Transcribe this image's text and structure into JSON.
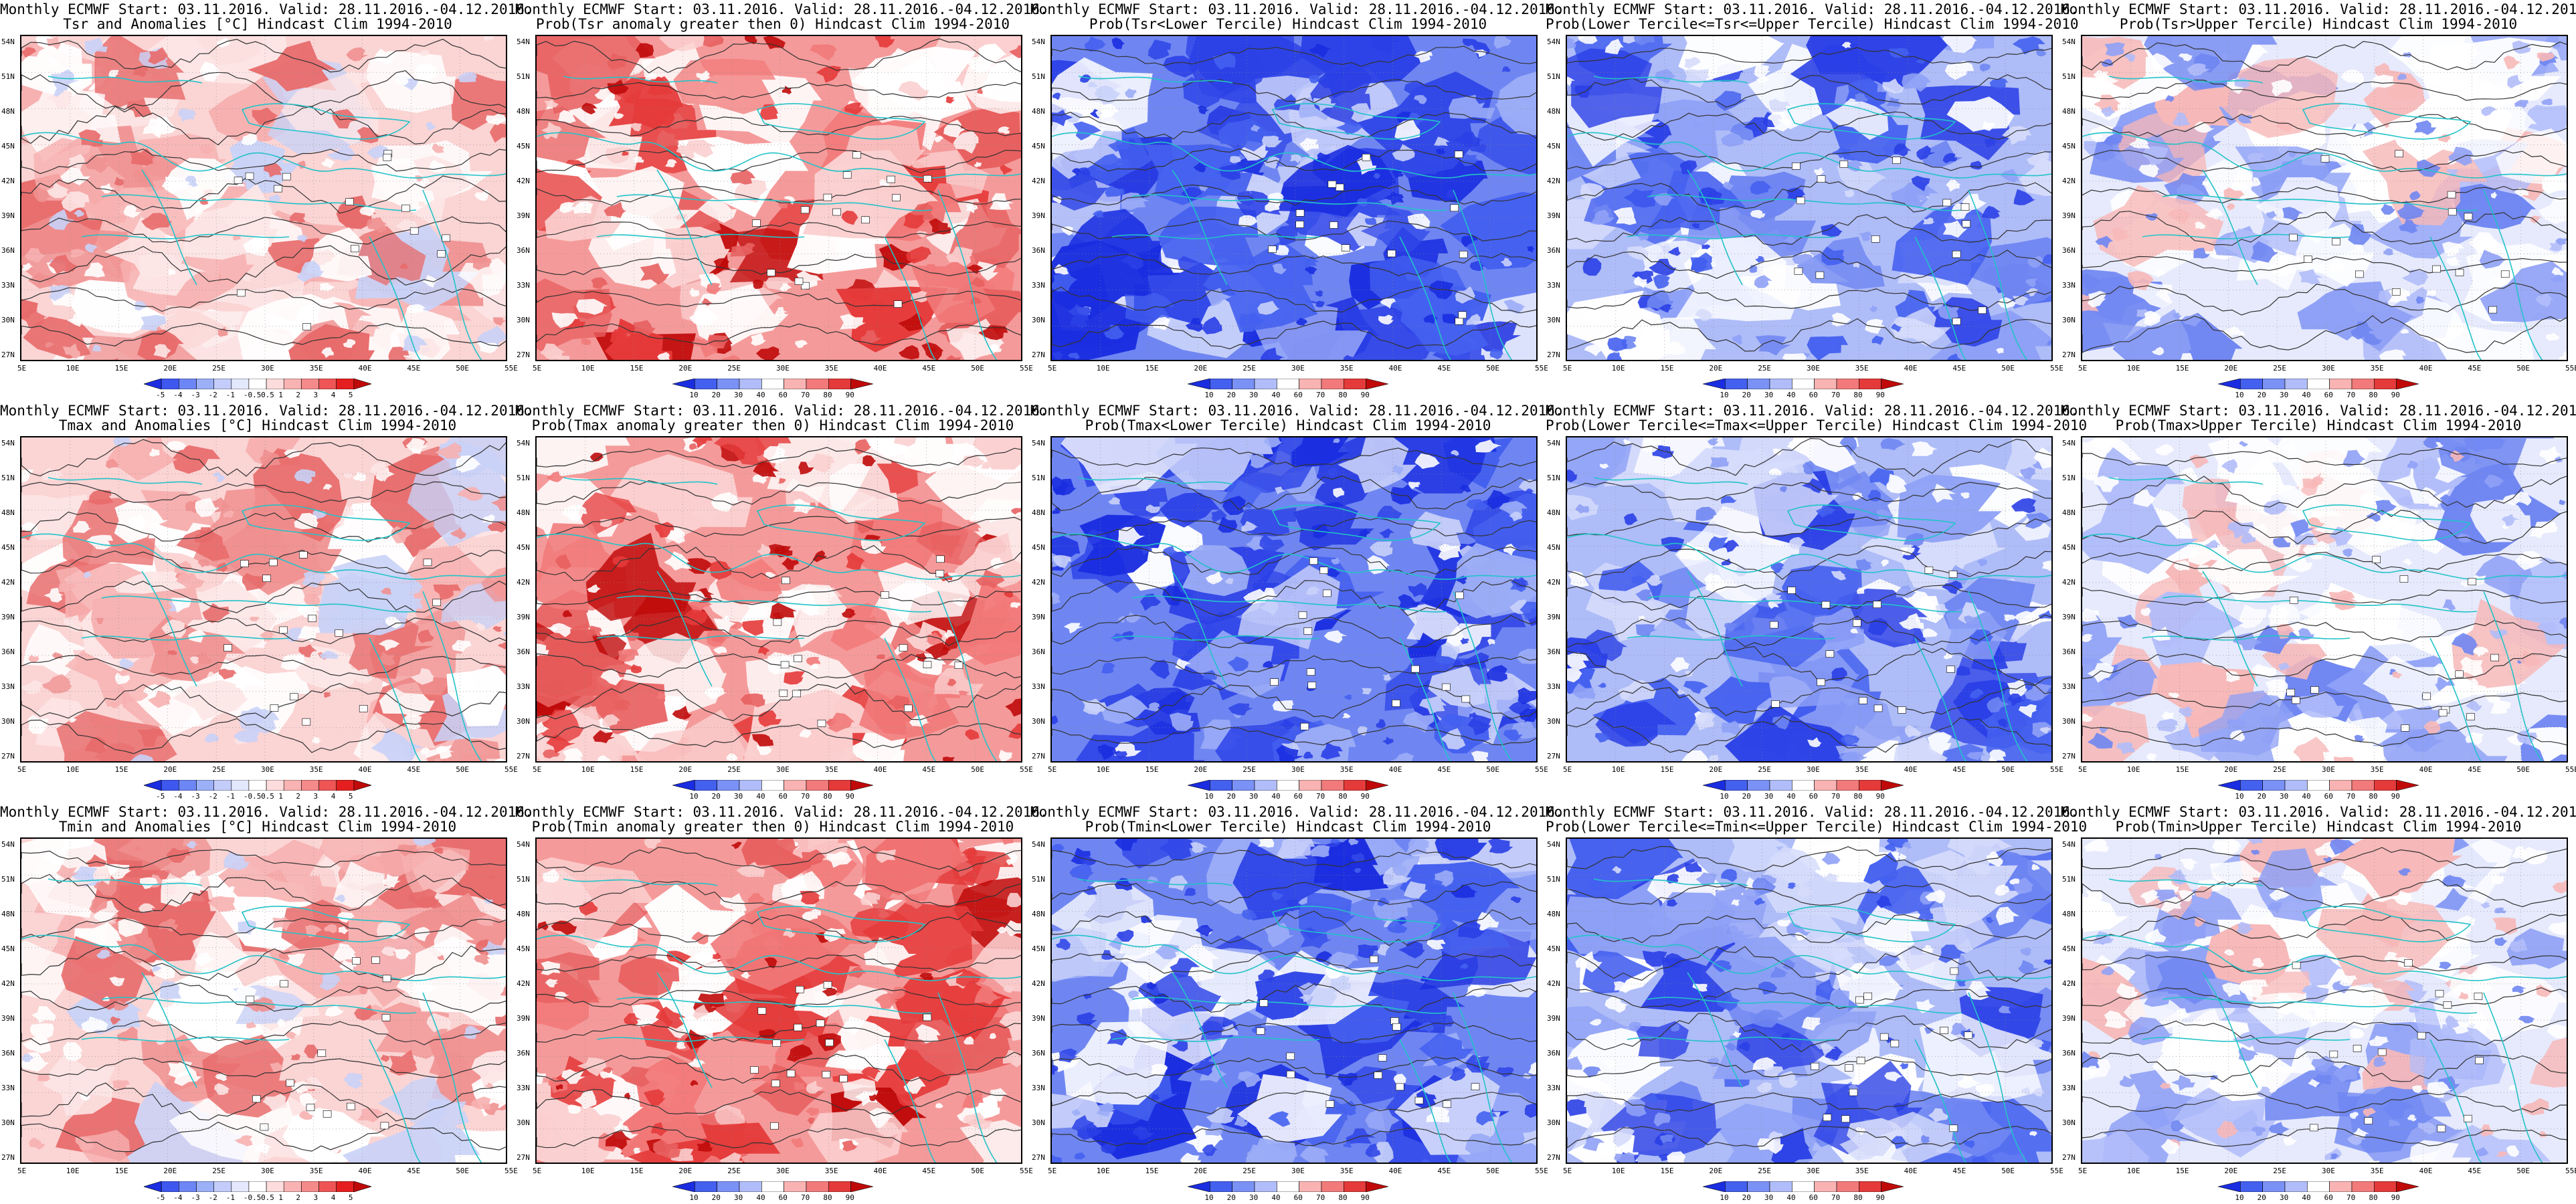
{
  "page": {
    "title_line1": "Monthly ECMWF Start: 03.11.2016. Valid: 28.11.2016.-04.12.2016.",
    "lat_labels": [
      "54N",
      "51N",
      "48N",
      "45N",
      "42N",
      "39N",
      "36N",
      "33N",
      "30N",
      "27N"
    ],
    "lon_labels": [
      "5E",
      "10E",
      "15E",
      "20E",
      "25E",
      "30E",
      "35E",
      "40E",
      "45E",
      "50E",
      "55E"
    ]
  },
  "colorbars": {
    "anomaly": {
      "labels": [
        "-5",
        "-4",
        "-3",
        "-2",
        "-1",
        "-0.5",
        "0.5",
        "1",
        "2",
        "3",
        "4",
        "5"
      ],
      "colors": [
        "#1a2de0",
        "#3d57ef",
        "#6c86f5",
        "#9cb0f8",
        "#c4cdfa",
        "#e4e8fc",
        "#ffffff",
        "#fcdcdc",
        "#f9b3b3",
        "#f58a8a",
        "#ef5555",
        "#e51f1f",
        "#c00a0a"
      ]
    },
    "probability": {
      "labels": [
        "10",
        "20",
        "30",
        "40",
        "60",
        "70",
        "80",
        "90"
      ],
      "colors": [
        "#1a2de0",
        "#4460ef",
        "#7a91f5",
        "#b1bdfa",
        "#ffffff",
        "#f9b3b3",
        "#f27a7a",
        "#e53a3a",
        "#c00a0a"
      ]
    }
  },
  "panels": [
    {
      "title2": "Tsr and Anomalies [°C] Hindcast Clim 1994-2010",
      "colorbar": "anomaly",
      "scheme": "warm-light"
    },
    {
      "title2": "Prob(Tsr anomaly greater then 0) Hindcast Clim 1994-2010",
      "colorbar": "probability",
      "scheme": "warm-strong"
    },
    {
      "title2": "Prob(Tsr<Lower Tercile) Hindcast Clim 1994-2010",
      "colorbar": "probability",
      "scheme": "blue-strong"
    },
    {
      "title2": "Prob(Lower Tercile<=Tsr<=Upper Tercile) Hindcast Clim 1994-2010",
      "colorbar": "probability",
      "scheme": "blue-mixed"
    },
    {
      "title2": "Prob(Tsr>Upper Tercile) Hindcast Clim 1994-2010",
      "colorbar": "probability",
      "scheme": "blue-light"
    },
    {
      "title2": "Tmax and Anomalies [°C] Hindcast Clim 1994-2010",
      "colorbar": "anomaly",
      "scheme": "warm-light"
    },
    {
      "title2": "Prob(Tmax anomaly greater then 0) Hindcast Clim 1994-2010",
      "colorbar": "probability",
      "scheme": "warm-strong"
    },
    {
      "title2": "Prob(Tmax<Lower Tercile) Hindcast Clim 1994-2010",
      "colorbar": "probability",
      "scheme": "blue-strong"
    },
    {
      "title2": "Prob(Lower Tercile<=Tmax<=Upper Tercile) Hindcast Clim 1994-2010",
      "colorbar": "probability",
      "scheme": "blue-mixed"
    },
    {
      "title2": "Prob(Tmax>Upper Tercile) Hindcast Clim 1994-2010",
      "colorbar": "probability",
      "scheme": "blue-light"
    },
    {
      "title2": "Tmin and Anomalies [°C] Hindcast Clim 1994-2010",
      "colorbar": "anomaly",
      "scheme": "warm-light"
    },
    {
      "title2": "Prob(Tmin anomaly greater then 0) Hindcast Clim 1994-2010",
      "colorbar": "probability",
      "scheme": "warm-strong"
    },
    {
      "title2": "Prob(Tmin<Lower Tercile) Hindcast Clim 1994-2010",
      "colorbar": "probability",
      "scheme": "blue-strong"
    },
    {
      "title2": "Prob(Lower Tercile<=Tmin<=Upper Tercile) Hindcast Clim 1994-2010",
      "colorbar": "probability",
      "scheme": "blue-mixed"
    },
    {
      "title2": "Prob(Tmin>Upper Tercile) Hindcast Clim 1994-2010",
      "colorbar": "probability",
      "scheme": "blue-light"
    }
  ],
  "colors": {
    "coastline": "#22c3c8",
    "contour": "#333333",
    "frame": "#000000"
  }
}
